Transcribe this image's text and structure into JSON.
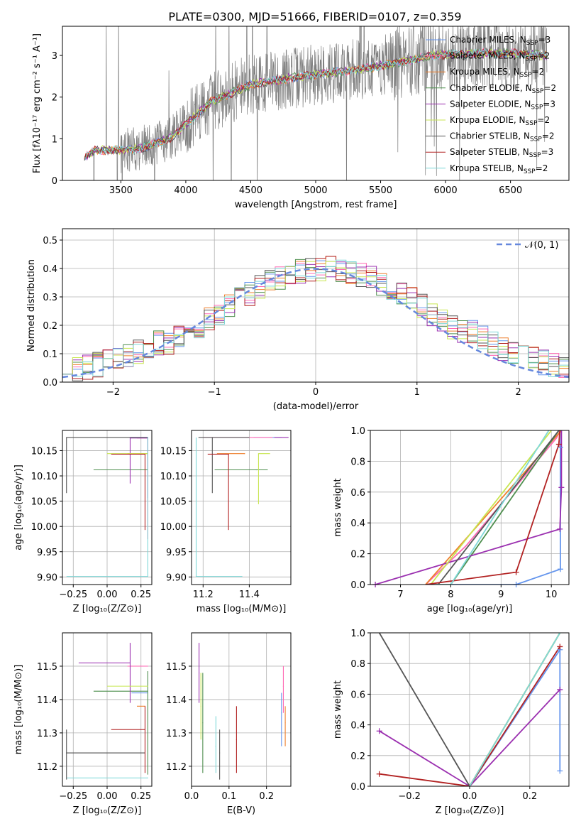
{
  "figure_title": "PLATE=0300, MJD=51666, FIBERID=0107, z=0.359",
  "colors": {
    "chabrier_miles": "#6495ed",
    "salpeter_miles": "#ff69b4",
    "kroupa_miles": "#ee7f2d",
    "chabrier_elodie": "#4f8f4f",
    "salpeter_elodie": "#9b30b0",
    "kroupa_elodie": "#c8e650",
    "chabrier_stelib": "#555555",
    "salpeter_stelib": "#b22222",
    "kroupa_stelib": "#7fd8d8",
    "observed": "#808080",
    "gaussian": "#6688dd"
  },
  "legend": [
    {
      "label": "Chabrier MILES, N",
      "sub": "SSP",
      "tail": "=3",
      "color": "#6495ed"
    },
    {
      "label": "Salpeter MILES, N",
      "sub": "SSP",
      "tail": "=2",
      "color": "#ff69b4"
    },
    {
      "label": "Kroupa MILES, N",
      "sub": "SSP",
      "tail": "=2",
      "color": "#ee7f2d"
    },
    {
      "label": "Chabrier ELODIE, N",
      "sub": "SSP",
      "tail": "=2",
      "color": "#4f8f4f"
    },
    {
      "label": "Salpeter ELODIE, N",
      "sub": "SSP",
      "tail": "=3",
      "color": "#9b30b0"
    },
    {
      "label": "Kroupa ELODIE, N",
      "sub": "SSP",
      "tail": "=2",
      "color": "#c8e650"
    },
    {
      "label": "Chabrier STELIB, N",
      "sub": "SSP",
      "tail": "=2",
      "color": "#555555"
    },
    {
      "label": "Salpeter STELIB, N",
      "sub": "SSP",
      "tail": "=3",
      "color": "#b22222"
    },
    {
      "label": "Kroupa STELIB, N",
      "sub": "SSP",
      "tail": "=2",
      "color": "#7fd8d8"
    }
  ],
  "chart_data": [
    {
      "id": "spectrum",
      "type": "line",
      "title": "PLATE=0300, MJD=51666, FIBERID=0107, z=0.359",
      "xlabel": "wavelength [Angstrom, rest frame]",
      "ylabel": "Flux [fλ10⁻¹⁷ erg cm⁻² s⁻¹ A⁻¹]",
      "xlim": [
        3050,
        6950
      ],
      "ylim": [
        0,
        3.7
      ],
      "xticks": [
        3500,
        4000,
        4500,
        5000,
        5500,
        6000,
        6500
      ],
      "yticks": [
        0,
        1,
        2,
        3
      ],
      "continuum_x": [
        3220,
        3300,
        3500,
        3700,
        3900,
        4000,
        4200,
        4500,
        4800,
        5000,
        5300,
        5600,
        5900,
        6200,
        6500,
        6780
      ],
      "continuum_y": [
        0.55,
        0.72,
        0.72,
        0.8,
        1.05,
        1.35,
        1.9,
        2.3,
        2.45,
        2.55,
        2.65,
        2.8,
        3.0,
        3.05,
        3.05,
        3.0
      ]
    },
    {
      "id": "residuals",
      "type": "bar",
      "xlabel": "(data-model)/error",
      "ylabel": "Normed distribution",
      "xlim": [
        -2.5,
        2.5
      ],
      "ylim": [
        0,
        0.54
      ],
      "xticks": [
        -2,
        -1,
        0,
        1,
        2
      ],
      "yticks": [
        0.0,
        0.1,
        0.2,
        0.3,
        0.4,
        0.5
      ],
      "legend": "𝒩(0, 1)",
      "gaussian": {
        "mu": 0,
        "sigma": 1
      }
    },
    {
      "id": "age-vs-Z",
      "type": "scatter",
      "xlabel": "Z [log₁₀(Z/Z⊙)]",
      "ylabel": "age  [log₁₀(age/yr)]",
      "xlim": [
        -0.33,
        0.33
      ],
      "ylim": [
        9.885,
        10.19
      ],
      "xticks": [
        -0.25,
        0.0,
        0.25
      ],
      "ytick_values": [
        9.9,
        9.95,
        10.0,
        10.05,
        10.1,
        10.15
      ],
      "ytick_labels": [
        "9.90",
        "9.95",
        "10.00",
        "10.05",
        "10.10",
        "10.15"
      ],
      "points": [
        {
          "x": 0.3,
          "y": 10.176,
          "xerr": [
            0.13,
            0.0
          ],
          "yerr": [
            0.12,
            0.0
          ],
          "color": "#6495ed"
        },
        {
          "x": 0.3,
          "y": 10.175,
          "xerr": [
            0.08,
            0.0
          ],
          "yerr": [
            0.2,
            0.0
          ],
          "color": "#ff69b4"
        },
        {
          "x": 0.3,
          "y": 10.144,
          "xerr": [
            0.15,
            0.0
          ],
          "yerr": [
            0.0,
            0.0
          ],
          "color": "#ee7f2d"
        },
        {
          "x": 0.3,
          "y": 10.112,
          "xerr": [
            0.4,
            0.0
          ],
          "yerr": [
            0.0,
            0.0
          ],
          "color": "#4f8f4f"
        },
        {
          "x": 0.17,
          "y": 10.175,
          "xerr": [
            0.0,
            0.13
          ],
          "yerr": [
            0.09,
            0.0
          ],
          "color": "#9b30b0"
        },
        {
          "x": 0.3,
          "y": 10.144,
          "xerr": [
            0.3,
            0.0
          ],
          "yerr": [
            0.0,
            0.0
          ],
          "color": "#c8e650"
        },
        {
          "x": -0.3,
          "y": 10.176,
          "xerr": [
            0.0,
            0.6
          ],
          "yerr": [
            0.11,
            0.0
          ],
          "color": "#555555"
        },
        {
          "x": 0.28,
          "y": 10.143,
          "xerr": [
            0.25,
            0.0
          ],
          "yerr": [
            0.15,
            0.0
          ],
          "color": "#b22222"
        },
        {
          "x": 0.3,
          "y": 9.901,
          "xerr": [
            0.6,
            0.0
          ],
          "yerr": [
            0.0,
            0.275
          ],
          "color": "#7fd8d8"
        }
      ]
    },
    {
      "id": "age-vs-mass",
      "type": "scatter",
      "xlabel": "mass [log₁₀(M/M⊙)]",
      "ylabel": "",
      "xlim": [
        11.15,
        11.58
      ],
      "ylim": [
        9.885,
        10.19
      ],
      "xticks": [
        11.2,
        11.4
      ],
      "ytick_values": [
        9.9,
        9.95,
        10.0,
        10.05,
        10.1,
        10.15
      ],
      "ytick_labels": [
        "9.90",
        "9.95",
        "10.00",
        "10.05",
        "10.10",
        "10.15"
      ],
      "points": [
        {
          "x": 11.42,
          "y": 10.176,
          "xerr": [
            0.0,
            0.12
          ],
          "yerr": [
            0.0,
            0.0
          ],
          "color": "#6495ed"
        },
        {
          "x": 11.5,
          "y": 10.176,
          "xerr": [
            0.3,
            0.0
          ],
          "yerr": [
            0.0,
            0.0
          ],
          "color": "#ff69b4"
        },
        {
          "x": 11.38,
          "y": 10.144,
          "xerr": [
            0.12,
            0.0
          ],
          "yerr": [
            0.0,
            0.0
          ],
          "color": "#ee7f2d"
        },
        {
          "x": 11.43,
          "y": 10.112,
          "xerr": [
            0.18,
            0.05
          ],
          "yerr": [
            0.0,
            0.0
          ],
          "color": "#4f8f4f"
        },
        {
          "x": 11.51,
          "y": 10.176,
          "xerr": [
            0.0,
            0.06
          ],
          "yerr": [
            0.0,
            0.0
          ],
          "color": "#9b30b0"
        },
        {
          "x": 11.44,
          "y": 10.144,
          "xerr": [
            0.0,
            0.05
          ],
          "yerr": [
            0.1,
            0.0
          ],
          "color": "#c8e650"
        },
        {
          "x": 11.24,
          "y": 10.176,
          "xerr": [
            0.06,
            0.16
          ],
          "yerr": [
            0.11,
            0.0
          ],
          "color": "#555555"
        },
        {
          "x": 11.31,
          "y": 10.143,
          "xerr": [
            0.09,
            0.0
          ],
          "yerr": [
            0.15,
            0.0
          ],
          "color": "#b22222"
        },
        {
          "x": 11.17,
          "y": 9.901,
          "xerr": [
            0.0,
            0.2
          ],
          "yerr": [
            0.0,
            0.275
          ],
          "color": "#7fd8d8"
        }
      ]
    },
    {
      "id": "cumulative-age",
      "type": "line",
      "xlabel": "age  [log₁₀(age/yr)]",
      "ylabel": "mass weight",
      "xlim": [
        6.4,
        10.35
      ],
      "ylim": [
        0,
        1
      ],
      "xticks": [
        7,
        8,
        9,
        10
      ],
      "yticks": [
        0.0,
        0.2,
        0.4,
        0.6,
        0.8,
        1.0
      ],
      "series": [
        {
          "x": [
            7.5,
            9.3,
            10.18,
            10.18,
            10.2
          ],
          "y": [
            0.0,
            0.0,
            0.1,
            0.89,
            1.0
          ],
          "color": "#6495ed",
          "marks": [
            false,
            true,
            true,
            true,
            false
          ]
        },
        {
          "x": [
            7.5,
            8.3,
            10.1,
            10.18
          ],
          "y": [
            0.0,
            0.25,
            0.95,
            1.0
          ],
          "color": "#ff69b4"
        },
        {
          "x": [
            7.5,
            10.2
          ],
          "y": [
            0.0,
            1.0
          ],
          "color": "#ee7f2d"
        },
        {
          "x": [
            7.7,
            8.0,
            10.15
          ],
          "y": [
            0.0,
            0.0,
            1.0
          ],
          "color": "#4f8f4f"
        },
        {
          "x": [
            6.5,
            10.17,
            10.2,
            10.2
          ],
          "y": [
            0.0,
            0.36,
            0.63,
            1.0
          ],
          "color": "#9b30b0",
          "marks": [
            true,
            true,
            true,
            false
          ]
        },
        {
          "x": [
            7.6,
            10.0
          ],
          "y": [
            0.0,
            1.0
          ],
          "color": "#c8e650"
        },
        {
          "x": [
            7.75,
            10.15
          ],
          "y": [
            0.0,
            1.0
          ],
          "color": "#555555"
        },
        {
          "x": [
            7.5,
            9.3,
            10.15,
            10.17
          ],
          "y": [
            0.0,
            0.08,
            0.91,
            1.0
          ],
          "color": "#b22222",
          "marks": [
            false,
            true,
            true,
            false
          ]
        },
        {
          "x": [
            7.7,
            8.0,
            9.95
          ],
          "y": [
            0.0,
            0.0,
            1.0
          ],
          "color": "#7fd8d8"
        }
      ]
    },
    {
      "id": "mass-vs-Z",
      "type": "scatter",
      "xlabel": "Z [log₁₀(Z/Z⊙)]",
      "ylabel": "mass [log₁₀(M/M⊙)]",
      "xlim": [
        -0.33,
        0.33
      ],
      "ylim": [
        11.14,
        11.6
      ],
      "xticks": [
        -0.25,
        0.0,
        0.25
      ],
      "ytick_values": [
        11.2,
        11.3,
        11.4,
        11.5
      ],
      "ytick_labels": [
        "11.2",
        "11.3",
        "11.4",
        "11.5"
      ],
      "points": [
        {
          "x": 0.3,
          "y": 11.42,
          "xerr": [
            0.12,
            0.0
          ],
          "yerr": [
            0.0,
            0.0
          ],
          "color": "#6495ed"
        },
        {
          "x": 0.3,
          "y": 11.5,
          "xerr": [
            0.15,
            0.0
          ],
          "yerr": [
            0.0,
            0.0
          ],
          "color": "#ff69b4"
        },
        {
          "x": 0.28,
          "y": 11.38,
          "xerr": [
            0.06,
            0.0
          ],
          "yerr": [
            0.0,
            0.0
          ],
          "color": "#ee7f2d"
        },
        {
          "x": 0.3,
          "y": 11.425,
          "xerr": [
            0.4,
            0.0
          ],
          "yerr": [
            0.25,
            0.06
          ],
          "color": "#4f8f4f"
        },
        {
          "x": 0.17,
          "y": 11.51,
          "xerr": [
            0.38,
            0.0
          ],
          "yerr": [
            0.12,
            0.06
          ],
          "color": "#9b30b0"
        },
        {
          "x": 0.3,
          "y": 11.44,
          "xerr": [
            0.3,
            0.0
          ],
          "yerr": [
            0.0,
            0.0
          ],
          "color": "#c8e650"
        },
        {
          "x": 0.28,
          "y": 11.24,
          "xerr": [
            0.58,
            0.0
          ],
          "yerr": [
            0.0,
            0.0
          ],
          "color": "#555555"
        },
        {
          "x": 0.28,
          "y": 11.31,
          "xerr": [
            0.25,
            0.0
          ],
          "yerr": [
            0.13,
            0.07
          ],
          "color": "#b22222"
        },
        {
          "x": 0.3,
          "y": 11.165,
          "xerr": [
            0.6,
            0.0
          ],
          "yerr": [
            0.0,
            0.0
          ],
          "color": "#7fd8d8"
        },
        {
          "x": -0.3,
          "y": 11.24,
          "xerr": [
            0.0,
            0.0
          ],
          "yerr": [
            0.08,
            0.07
          ],
          "color": "#555555"
        }
      ]
    },
    {
      "id": "mass-vs-ebv",
      "type": "scatter",
      "xlabel": "E(B-V)",
      "ylabel": "",
      "xlim": [
        0.0,
        0.265
      ],
      "ylim": [
        11.14,
        11.6
      ],
      "xticks": [
        0.0,
        0.1,
        0.2
      ],
      "ytick_values": [
        11.2,
        11.3,
        11.4,
        11.5
      ],
      "ytick_labels": [
        "11.2",
        "11.3",
        "11.4",
        "11.5"
      ],
      "points": [
        {
          "x": 0.24,
          "y": 11.36,
          "yerr": [
            0.1,
            0.06
          ],
          "color": "#6495ed"
        },
        {
          "x": 0.245,
          "y": 11.44,
          "yerr": [
            0.08,
            0.06
          ],
          "color": "#ff69b4"
        },
        {
          "x": 0.25,
          "y": 11.33,
          "yerr": [
            0.07,
            0.05
          ],
          "color": "#ee7f2d"
        },
        {
          "x": 0.03,
          "y": 11.33,
          "yerr": [
            0.15,
            0.15
          ],
          "color": "#4f8f4f"
        },
        {
          "x": 0.02,
          "y": 11.48,
          "yerr": [
            0.09,
            0.09
          ],
          "color": "#9b30b0"
        },
        {
          "x": 0.025,
          "y": 11.38,
          "yerr": [
            0.1,
            0.1
          ],
          "color": "#c8e650"
        },
        {
          "x": 0.075,
          "y": 11.24,
          "yerr": [
            0.08,
            0.07
          ],
          "color": "#555555"
        },
        {
          "x": 0.12,
          "y": 11.28,
          "yerr": [
            0.1,
            0.1
          ],
          "color": "#b22222"
        },
        {
          "x": 0.065,
          "y": 11.26,
          "yerr": [
            0.08,
            0.09
          ],
          "color": "#7fd8d8"
        }
      ]
    },
    {
      "id": "cumulative-Z",
      "type": "line",
      "xlabel": "Z [log₁₀(Z/Z⊙)]",
      "ylabel": "mass weight",
      "xlim": [
        -0.33,
        0.33
      ],
      "ylim": [
        0,
        1
      ],
      "xticks": [
        -0.2,
        0.0,
        0.2
      ],
      "yticks": [
        0.0,
        0.2,
        0.4,
        0.6,
        0.8,
        1.0
      ],
      "series": [
        {
          "x": [
            0.0,
            0.3,
            0.3
          ],
          "y": [
            0.0,
            0.89,
            0.1
          ],
          "color": "#6495ed",
          "marks": [
            false,
            true,
            true
          ]
        },
        {
          "x": [
            0.0,
            0.3
          ],
          "y": [
            0.0,
            1.0
          ],
          "color": "#ff69b4"
        },
        {
          "x": [
            0.0,
            0.3
          ],
          "y": [
            0.0,
            1.0
          ],
          "color": "#ee7f2d"
        },
        {
          "x": [
            0.0,
            0.3
          ],
          "y": [
            0.0,
            1.0
          ],
          "color": "#4f8f4f"
        },
        {
          "x": [
            -0.3,
            0.0,
            0.3
          ],
          "y": [
            0.36,
            0.0,
            0.63
          ],
          "color": "#9b30b0",
          "marks": [
            true,
            false,
            true
          ]
        },
        {
          "x": [
            0.0,
            0.3
          ],
          "y": [
            0.0,
            1.0
          ],
          "color": "#c8e650"
        },
        {
          "x": [
            -0.3,
            0.0
          ],
          "y": [
            1.0,
            0.0
          ],
          "color": "#555555"
        },
        {
          "x": [
            -0.3,
            0.0,
            0.3
          ],
          "y": [
            0.08,
            0.0,
            0.91
          ],
          "color": "#b22222",
          "marks": [
            true,
            false,
            true
          ]
        },
        {
          "x": [
            0.0,
            0.3
          ],
          "y": [
            0.0,
            1.0
          ],
          "color": "#7fd8d8"
        }
      ]
    }
  ]
}
